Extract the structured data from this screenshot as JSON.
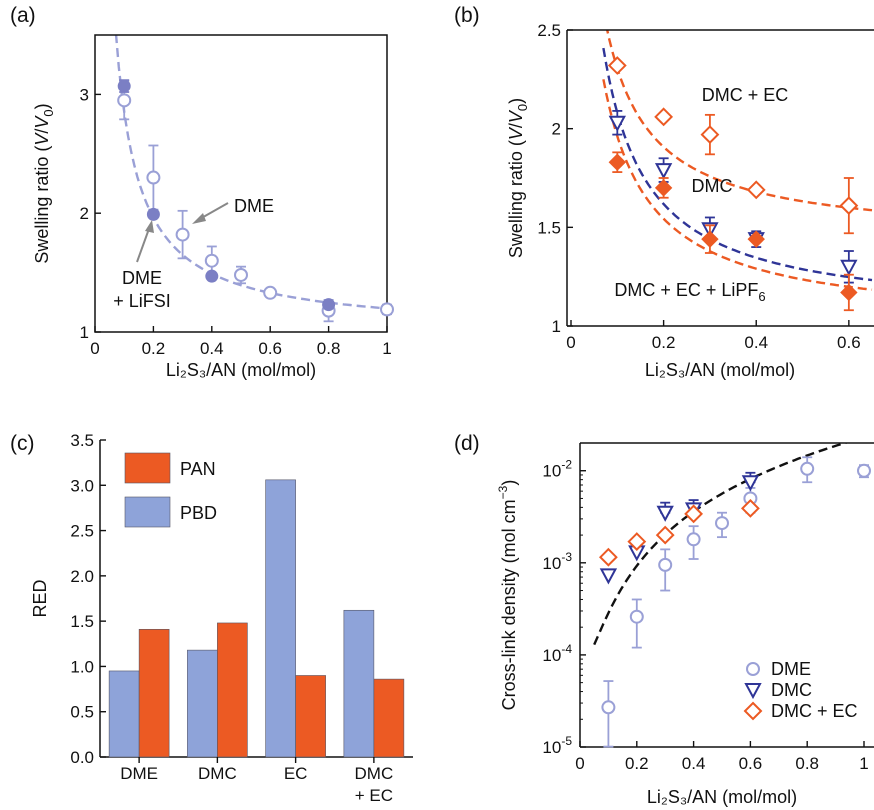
{
  "colors": {
    "purple": "#7b7fc4",
    "purple_light": "#9aa0d6",
    "navy": "#2f3597",
    "orange": "#ec5a23",
    "bar_pan": "#ec5a23",
    "bar_pbd": "#8ea3d9",
    "axis": "#111111"
  },
  "chart_data": [
    {
      "panel": "(a)",
      "type": "scatter",
      "xlabel": "Li₂S₃/AN (mol/mol)",
      "ylabel_main": "Swelling ratio (",
      "ylabel_var": "V",
      "ylabel_sep": "/",
      "ylabel_var0": "V",
      "ylabel_sub": "0",
      "ylabel_end": ")",
      "xlim": [
        0,
        1
      ],
      "ylim": [
        1,
        3.5
      ],
      "xticks": [
        "0",
        "0.2",
        "0.4",
        "0.6",
        "0.8",
        "1"
      ],
      "yticks": [
        "1",
        "2",
        "3"
      ],
      "series": [
        {
          "name": "DME",
          "marker": "open-circle",
          "color": "purple_light",
          "x": [
            0.1,
            0.2,
            0.3,
            0.4,
            0.5,
            0.6,
            0.8,
            1.0
          ],
          "y": [
            2.95,
            2.3,
            1.82,
            1.6,
            1.48,
            1.33,
            1.18,
            1.19
          ],
          "err": [
            0.16,
            0.27,
            0.2,
            0.12,
            0.07,
            0.03,
            0.09,
            0.04
          ]
        },
        {
          "name": "DME + LiFSI",
          "marker": "filled-circle",
          "color": "purple",
          "x": [
            0.1,
            0.2,
            0.4,
            0.8
          ],
          "y": [
            3.07,
            1.99,
            1.47,
            1.23
          ],
          "err": [
            0.05,
            0.02,
            0.02,
            0.02
          ]
        }
      ],
      "fit": {
        "style": "dashed",
        "color": "purple_light"
      },
      "annotations": {
        "dme": "DME",
        "dme_lifsi_1": "DME",
        "dme_lifsi_2": "+ LiFSI"
      }
    },
    {
      "panel": "(b)",
      "type": "scatter",
      "xlabel": "Li₂S₃/AN (mol/mol)",
      "ylabel_main": "Swelling ratio (",
      "ylabel_var": "V",
      "ylabel_sep": "/",
      "ylabel_var0": "V",
      "ylabel_sub": "0",
      "ylabel_end": ")",
      "xlim": [
        0,
        0.65
      ],
      "ylim": [
        1,
        2.5
      ],
      "xticks": [
        "0",
        "0.2",
        "0.4",
        "0.6"
      ],
      "yticks": [
        "1",
        "1.5",
        "2",
        "2.5"
      ],
      "series": [
        {
          "name": "DMC + EC",
          "marker": "open-diamond",
          "color": "orange",
          "x": [
            0.1,
            0.2,
            0.3,
            0.4,
            0.6
          ],
          "y": [
            2.32,
            2.06,
            1.97,
            1.69,
            1.61
          ],
          "err": [
            0.03,
            0.02,
            0.1,
            0.02,
            0.14
          ]
        },
        {
          "name": "DMC",
          "marker": "open-triangle-down",
          "color": "navy",
          "x": [
            0.1,
            0.2,
            0.3,
            0.4,
            0.6
          ],
          "y": [
            2.03,
            1.79,
            1.49,
            1.44,
            1.3
          ],
          "err": [
            0.06,
            0.06,
            0.06,
            0.04,
            0.08
          ]
        },
        {
          "name": "DMC + EC + LiPF6",
          "marker": "filled-diamond",
          "color": "orange",
          "x": [
            0.1,
            0.2,
            0.3,
            0.4,
            0.6
          ],
          "y": [
            1.83,
            1.7,
            1.44,
            1.44,
            1.17
          ],
          "err": [
            0.05,
            0.05,
            0.07,
            0.03,
            0.09
          ]
        }
      ],
      "annotations": {
        "dmc_ec": "DMC + EC",
        "dmc": "DMC",
        "dmc_ec_lipf6_main": "DMC + EC + LiPF",
        "dmc_ec_lipf6_sub": "6"
      }
    },
    {
      "panel": "(c)",
      "type": "bar",
      "ylabel": "RED",
      "ylim": [
        0,
        3.5
      ],
      "yticks": [
        "0.0",
        "0.5",
        "1.0",
        "1.5",
        "2.0",
        "2.5",
        "3.0",
        "3.5"
      ],
      "categories": [
        "DME",
        "DMC",
        "EC",
        "DMC"
      ],
      "category_line2": [
        "",
        "",
        "",
        "+ EC"
      ],
      "series": [
        {
          "name": "PBD",
          "color": "bar_pbd",
          "values": [
            0.95,
            1.18,
            3.06,
            1.62
          ]
        },
        {
          "name": "PAN",
          "color": "bar_pan",
          "values": [
            1.41,
            1.48,
            0.9,
            0.86
          ]
        }
      ],
      "legend": [
        "PAN",
        "PBD"
      ]
    },
    {
      "panel": "(d)",
      "type": "scatter",
      "yscale": "log",
      "xlabel": "Li₂S₃/AN (mol/mol)",
      "ylabel_main": "Cross-link density (mol cm",
      "ylabel_sup": "−3",
      "ylabel_end": ")",
      "xlim": [
        0,
        1
      ],
      "ylim": [
        1e-05,
        0.02
      ],
      "xticks": [
        "0",
        "0.2",
        "0.4",
        "0.6",
        "0.8",
        "1"
      ],
      "ytick_base": "10",
      "ytick_exps": [
        "-5",
        "-4",
        "-3",
        "-2"
      ],
      "series": [
        {
          "name": "DME",
          "marker": "open-circle",
          "color": "purple_light",
          "x": [
            0.1,
            0.2,
            0.3,
            0.4,
            0.5,
            0.6,
            0.8,
            1.0
          ],
          "y": [
            2.7e-05,
            0.00026,
            0.00095,
            0.0018,
            0.0027,
            0.005,
            0.0105,
            0.01
          ],
          "err_lo": [
            1.8e-05,
            0.00014,
            0.00045,
            0.0007,
            0.0008,
            0.0015,
            0.003,
            0.0015
          ],
          "err_hi": [
            2.5e-05,
            0.00014,
            0.00045,
            0.0007,
            0.0008,
            0.0015,
            0.0035,
            0.0015
          ]
        },
        {
          "name": "DMC",
          "marker": "open-triangle-down",
          "color": "navy",
          "x": [
            0.1,
            0.2,
            0.3,
            0.4,
            0.6
          ],
          "y": [
            0.00073,
            0.0013,
            0.0035,
            0.0038,
            0.0075
          ],
          "err_lo": [
            0,
            0,
            0,
            0,
            0
          ],
          "err_hi": [
            0,
            0,
            0.001,
            0.001,
            0.002
          ]
        },
        {
          "name": "DMC + EC",
          "marker": "open-diamond",
          "color": "orange",
          "x": [
            0.1,
            0.2,
            0.3,
            0.4,
            0.6
          ],
          "y": [
            0.00115,
            0.0017,
            0.002,
            0.0034,
            0.0039
          ],
          "err_lo": [
            0,
            0,
            0,
            0,
            0
          ],
          "err_hi": [
            0,
            0,
            0,
            0,
            0
          ]
        }
      ],
      "fit": {
        "style": "dashed",
        "color": "axis"
      },
      "legend": [
        "DME",
        "DMC",
        "DMC + EC"
      ]
    }
  ]
}
